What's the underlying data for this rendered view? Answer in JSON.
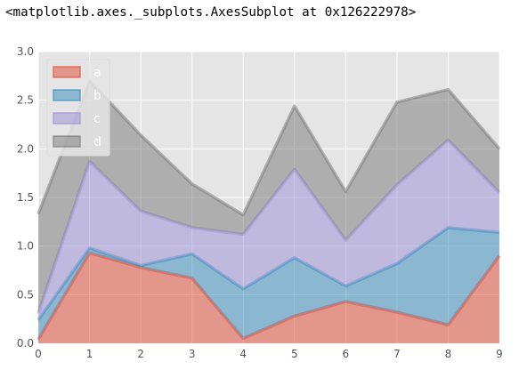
{
  "output_text": "<matplotlib.axes._subplots.AxesSubplot at 0x126222978>",
  "chart_data": {
    "type": "area",
    "stacked": true,
    "x": [
      0,
      1,
      2,
      3,
      4,
      5,
      6,
      7,
      8,
      9
    ],
    "series": [
      {
        "name": "a",
        "color": "#e24a33",
        "values": [
          0.04,
          0.93,
          0.78,
          0.67,
          0.05,
          0.28,
          0.43,
          0.32,
          0.19,
          0.9
        ]
      },
      {
        "name": "b",
        "color": "#348abd",
        "values": [
          0.2,
          0.05,
          0.02,
          0.25,
          0.51,
          0.6,
          0.16,
          0.5,
          1.0,
          0.24
        ]
      },
      {
        "name": "c",
        "color": "#988ed5",
        "values": [
          0.07,
          0.89,
          0.56,
          0.27,
          0.56,
          0.91,
          0.47,
          0.81,
          0.9,
          0.41
        ]
      },
      {
        "name": "d",
        "color": "#777777",
        "values": [
          1.02,
          0.83,
          0.78,
          0.45,
          0.2,
          0.65,
          0.5,
          0.85,
          0.52,
          0.45
        ]
      }
    ],
    "xticks": [
      "0",
      "1",
      "2",
      "3",
      "4",
      "5",
      "6",
      "7",
      "8",
      "9"
    ],
    "yticks": [
      "0.0",
      "0.5",
      "1.0",
      "1.5",
      "2.0",
      "2.5",
      "3.0"
    ],
    "xlim": [
      0,
      9
    ],
    "ylim": [
      0,
      3.0
    ],
    "grid": true,
    "legend_position": "upper-left",
    "style": "ggplot",
    "background_color": "#e5e5e5",
    "grid_color": "#ffffff"
  }
}
